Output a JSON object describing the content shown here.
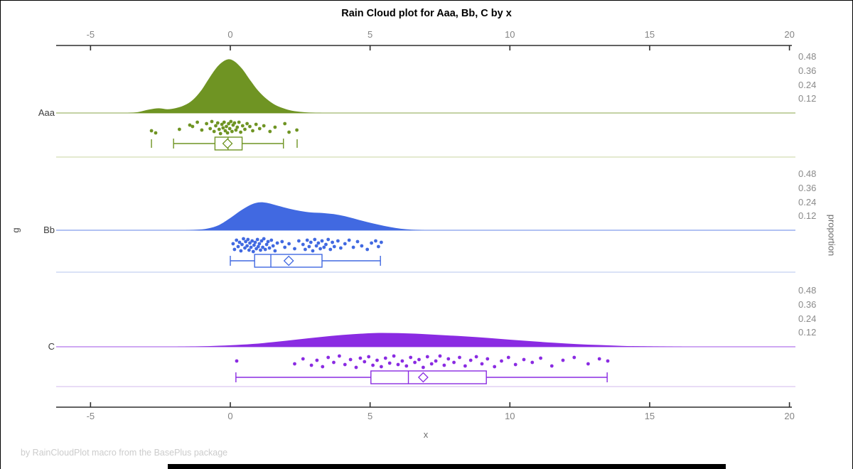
{
  "footer": "by RainCloudPlot macro from the BasePlus package",
  "chart_data": {
    "type": "raincloud",
    "title": "Rain Cloud plot for Aaa, Bb, C by x",
    "xlabel": "x",
    "ylabel": "g",
    "y2label": "proportion",
    "x_ticks": [
      -5,
      0,
      5,
      10,
      15,
      20
    ],
    "xlim": [
      -6.2,
      20.3
    ],
    "proportion_ticks": [
      0.48,
      0.36,
      0.24,
      0.12
    ],
    "legend": "none",
    "groups": [
      {
        "name": "Aaa",
        "color": "#6F9423",
        "separator_color": "#D3DDB3",
        "box": {
          "whisker_low": -2.03,
          "q1": -0.55,
          "median": -0.08,
          "q3": 0.42,
          "whisker_high": 1.9,
          "mean": -0.1,
          "outliers": [
            -2.82,
            2.39
          ]
        },
        "density": [
          [
            -3.7,
            0
          ],
          [
            -3.3,
            0.008
          ],
          [
            -2.9,
            0.03
          ],
          [
            -2.55,
            0.04
          ],
          [
            -2.25,
            0.032
          ],
          [
            -1.95,
            0.042
          ],
          [
            -1.65,
            0.065
          ],
          [
            -1.35,
            0.11
          ],
          [
            -1.05,
            0.19
          ],
          [
            -0.75,
            0.3
          ],
          [
            -0.45,
            0.4
          ],
          [
            -0.15,
            0.455
          ],
          [
            0.1,
            0.45
          ],
          [
            0.4,
            0.385
          ],
          [
            0.7,
            0.285
          ],
          [
            1.0,
            0.19
          ],
          [
            1.3,
            0.12
          ],
          [
            1.6,
            0.07
          ],
          [
            1.9,
            0.04
          ],
          [
            2.2,
            0.02
          ],
          [
            2.6,
            0.008
          ],
          [
            3.0,
            0.002
          ],
          [
            3.4,
            0
          ]
        ],
        "points": [
          [
            -2.82,
            4
          ],
          [
            -2.67,
            7
          ],
          [
            -1.82,
            2
          ],
          [
            -1.45,
            -4
          ],
          [
            -1.35,
            -2
          ],
          [
            -1.18,
            -8
          ],
          [
            -1.02,
            3
          ],
          [
            -0.85,
            -6
          ],
          [
            -0.72,
            1
          ],
          [
            -0.66,
            -9
          ],
          [
            -0.58,
            5
          ],
          [
            -0.52,
            -3
          ],
          [
            -0.45,
            -7
          ],
          [
            -0.4,
            2
          ],
          [
            -0.35,
            8
          ],
          [
            -0.3,
            -5
          ],
          [
            -0.26,
            0
          ],
          [
            -0.22,
            -8
          ],
          [
            -0.18,
            4
          ],
          [
            -0.14,
            -2
          ],
          [
            -0.1,
            7
          ],
          [
            -0.06,
            -6
          ],
          [
            -0.02,
            1
          ],
          [
            0.02,
            -9
          ],
          [
            0.06,
            5
          ],
          [
            0.1,
            -4
          ],
          [
            0.15,
            -7
          ],
          [
            0.2,
            3
          ],
          [
            0.25,
            -1
          ],
          [
            0.31,
            -8
          ],
          [
            0.37,
            6
          ],
          [
            0.44,
            -3
          ],
          [
            0.52,
            2
          ],
          [
            0.6,
            -6
          ],
          [
            0.7,
            -2
          ],
          [
            0.8,
            4
          ],
          [
            0.92,
            -5
          ],
          [
            1.05,
            1
          ],
          [
            1.2,
            -3
          ],
          [
            1.42,
            5
          ],
          [
            1.6,
            -1
          ],
          [
            1.95,
            -6
          ],
          [
            2.1,
            6
          ],
          [
            2.38,
            3
          ]
        ]
      },
      {
        "name": "Bb",
        "color": "#4169E1",
        "separator_color": "#C4D1F1",
        "box": {
          "whisker_low": 0.0,
          "q1": 0.87,
          "median": 1.45,
          "q3": 3.28,
          "whisker_high": 5.37,
          "mean": 2.09,
          "outliers": []
        },
        "density": [
          [
            -1.6,
            0
          ],
          [
            -1.2,
            0.004
          ],
          [
            -0.8,
            0.015
          ],
          [
            -0.4,
            0.045
          ],
          [
            0,
            0.105
          ],
          [
            0.35,
            0.165
          ],
          [
            0.7,
            0.215
          ],
          [
            1.0,
            0.238
          ],
          [
            1.3,
            0.235
          ],
          [
            1.7,
            0.21
          ],
          [
            2.1,
            0.185
          ],
          [
            2.5,
            0.165
          ],
          [
            2.9,
            0.152
          ],
          [
            3.3,
            0.148
          ],
          [
            3.7,
            0.138
          ],
          [
            4.1,
            0.12
          ],
          [
            4.5,
            0.095
          ],
          [
            4.9,
            0.07
          ],
          [
            5.3,
            0.048
          ],
          [
            5.7,
            0.028
          ],
          [
            6.1,
            0.013
          ],
          [
            6.5,
            0.005
          ],
          [
            7.0,
            0
          ]
        ],
        "points": [
          [
            0.1,
            -2
          ],
          [
            0.15,
            6
          ],
          [
            0.22,
            -7
          ],
          [
            0.28,
            2
          ],
          [
            0.33,
            -4
          ],
          [
            0.38,
            8
          ],
          [
            0.42,
            -1
          ],
          [
            0.47,
            -9
          ],
          [
            0.52,
            4
          ],
          [
            0.55,
            -5
          ],
          [
            0.6,
            1
          ],
          [
            0.63,
            -8
          ],
          [
            0.67,
            7
          ],
          [
            0.7,
            -3
          ],
          [
            0.74,
            3
          ],
          [
            0.78,
            -6
          ],
          [
            0.82,
            9
          ],
          [
            0.85,
            0
          ],
          [
            0.89,
            -4
          ],
          [
            0.93,
            5
          ],
          [
            0.97,
            -8
          ],
          [
            1.0,
            2
          ],
          [
            1.04,
            -2
          ],
          [
            1.08,
            7
          ],
          [
            1.12,
            -6
          ],
          [
            1.16,
            3
          ],
          [
            1.2,
            -9
          ],
          [
            1.25,
            6
          ],
          [
            1.3,
            -1
          ],
          [
            1.35,
            -5
          ],
          [
            1.4,
            4
          ],
          [
            1.47,
            -7
          ],
          [
            1.53,
            1
          ],
          [
            1.6,
            8
          ],
          [
            1.68,
            -3
          ],
          [
            1.85,
            -5
          ],
          [
            1.95,
            3
          ],
          [
            2.1,
            -2
          ],
          [
            2.3,
            5
          ],
          [
            2.45,
            -6
          ],
          [
            2.6,
            -1
          ],
          [
            2.68,
            6
          ],
          [
            2.75,
            -7
          ],
          [
            2.82,
            2
          ],
          [
            2.88,
            -4
          ],
          [
            2.95,
            8
          ],
          [
            3.02,
            -8
          ],
          [
            3.08,
            1
          ],
          [
            3.15,
            -3
          ],
          [
            3.22,
            5
          ],
          [
            3.28,
            -6
          ],
          [
            3.35,
            3
          ],
          [
            3.42,
            -1
          ],
          [
            3.5,
            -8
          ],
          [
            3.58,
            6
          ],
          [
            3.65,
            -4
          ],
          [
            3.72,
            2
          ],
          [
            3.85,
            -6
          ],
          [
            3.95,
            4
          ],
          [
            4.1,
            -2
          ],
          [
            4.25,
            -7
          ],
          [
            4.4,
            3
          ],
          [
            4.55,
            -5
          ],
          [
            4.7,
            1
          ],
          [
            4.9,
            6
          ],
          [
            5.05,
            -3
          ],
          [
            5.2,
            -6
          ],
          [
            5.3,
            2
          ],
          [
            5.4,
            -4
          ]
        ]
      },
      {
        "name": "C",
        "color": "#8A2BE2",
        "separator_color": "#DBC6F0",
        "box": {
          "whisker_low": 0.2,
          "q1": 5.03,
          "median": 6.37,
          "q3": 9.16,
          "whisker_high": 13.48,
          "mean": 6.9,
          "outliers": []
        },
        "density": [
          [
            -2.0,
            0
          ],
          [
            -1.2,
            0.003
          ],
          [
            -0.4,
            0.009
          ],
          [
            0.4,
            0.018
          ],
          [
            1.2,
            0.032
          ],
          [
            2.0,
            0.052
          ],
          [
            2.8,
            0.073
          ],
          [
            3.6,
            0.093
          ],
          [
            4.4,
            0.108
          ],
          [
            5.2,
            0.118
          ],
          [
            6.0,
            0.117
          ],
          [
            6.8,
            0.11
          ],
          [
            7.6,
            0.1
          ],
          [
            8.4,
            0.089
          ],
          [
            9.2,
            0.076
          ],
          [
            10.0,
            0.061
          ],
          [
            10.8,
            0.047
          ],
          [
            11.6,
            0.034
          ],
          [
            12.4,
            0.023
          ],
          [
            13.2,
            0.015
          ],
          [
            14.0,
            0.008
          ],
          [
            14.8,
            0.004
          ],
          [
            15.7,
            0.001
          ],
          [
            16.2,
            0
          ]
        ],
        "points": [
          [
            0.23,
            -1
          ],
          [
            2.3,
            3
          ],
          [
            2.6,
            -4
          ],
          [
            2.9,
            5
          ],
          [
            3.1,
            -2
          ],
          [
            3.3,
            7
          ],
          [
            3.5,
            -6
          ],
          [
            3.7,
            1
          ],
          [
            3.9,
            -8
          ],
          [
            4.1,
            4
          ],
          [
            4.3,
            -3
          ],
          [
            4.5,
            8
          ],
          [
            4.65,
            -5
          ],
          [
            4.8,
            0
          ],
          [
            4.95,
            -7
          ],
          [
            5.1,
            5
          ],
          [
            5.25,
            -2
          ],
          [
            5.4,
            7
          ],
          [
            5.55,
            -5
          ],
          [
            5.7,
            2
          ],
          [
            5.85,
            -8
          ],
          [
            6.0,
            4
          ],
          [
            6.15,
            -1
          ],
          [
            6.3,
            6
          ],
          [
            6.45,
            -6
          ],
          [
            6.6,
            1
          ],
          [
            6.75,
            -3
          ],
          [
            6.9,
            8
          ],
          [
            7.05,
            -7
          ],
          [
            7.2,
            3
          ],
          [
            7.35,
            -1
          ],
          [
            7.5,
            -8
          ],
          [
            7.65,
            5
          ],
          [
            7.8,
            -4
          ],
          [
            8.0,
            1
          ],
          [
            8.2,
            -6
          ],
          [
            8.4,
            6
          ],
          [
            8.6,
            -2
          ],
          [
            8.8,
            -7
          ],
          [
            9.0,
            3
          ],
          [
            9.2,
            -4
          ],
          [
            9.45,
            7
          ],
          [
            9.7,
            -1
          ],
          [
            9.95,
            -6
          ],
          [
            10.2,
            4
          ],
          [
            10.5,
            -3
          ],
          [
            10.8,
            1
          ],
          [
            11.1,
            -5
          ],
          [
            11.5,
            6
          ],
          [
            11.9,
            -2
          ],
          [
            12.3,
            -6
          ],
          [
            12.8,
            3
          ],
          [
            13.2,
            -4
          ],
          [
            13.5,
            -1
          ]
        ]
      }
    ]
  }
}
